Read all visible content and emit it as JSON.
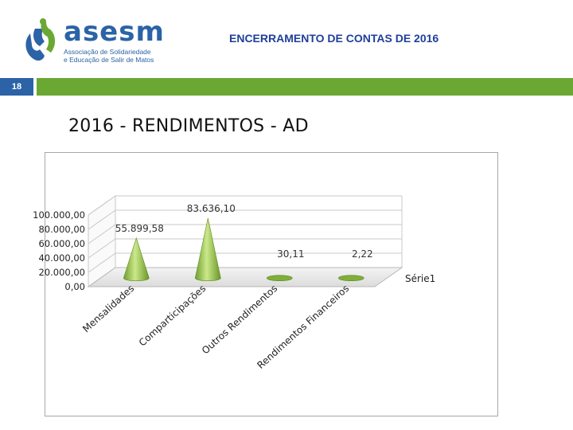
{
  "logo": {
    "name": "asesm",
    "subtitle_line1": "Associação de Solidariedade",
    "subtitle_line2": "e Educação de Salir de Matos",
    "colors": {
      "blue": "#2b63a6",
      "green": "#6aa833"
    }
  },
  "header": {
    "title": "ENCERRAMENTO DE CONTAS DE 2016",
    "page_number": "18"
  },
  "slide": {
    "title": "2016 - RENDIMENTOS - AD"
  },
  "chart_data": {
    "type": "bar",
    "style": "3d-cone",
    "categories": [
      "Mensalidades",
      "Comparticipações",
      "Outros Rendimentos",
      "Rendimentos Financeiros"
    ],
    "series": [
      {
        "name": "Série1",
        "values": [
          55899.58,
          83636.1,
          30.11,
          2.22
        ],
        "data_labels": [
          "55.899,58",
          "83.636,10",
          "30,11",
          "2,22"
        ],
        "color": "#8cc63f"
      }
    ],
    "ylim": [
      0,
      100000
    ],
    "yticks": [
      0,
      20000,
      40000,
      60000,
      80000,
      100000
    ],
    "ytick_labels": [
      "0,00",
      "20.000,00",
      "40.000,00",
      "60.000,00",
      "80.000,00",
      "100.000,00"
    ],
    "grid": true,
    "legend": "right"
  }
}
